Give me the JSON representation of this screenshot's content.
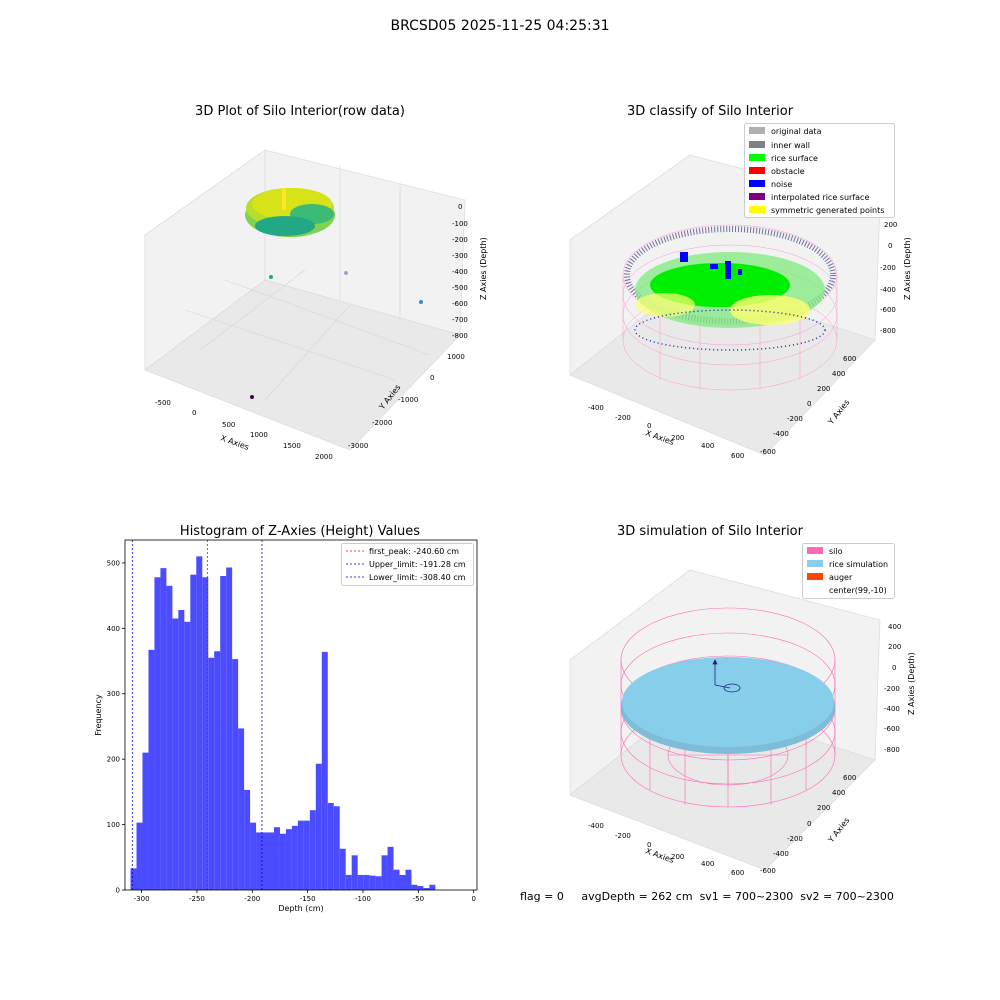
{
  "suptitle": "BRCSD05 2025-11-25 04:25:31",
  "bottom_info": {
    "flag": "flag = 0",
    "avg": "avgDepth = 262 cm",
    "sv1": "sv1 = 700~2300",
    "sv2": "sv2 = 700~2300"
  },
  "panels": {
    "raw": {
      "title": "3D Plot of Silo Interior(row data)",
      "xlabel": "X Axies",
      "ylabel": "Y Axies",
      "zlabel": "Z Axies (Depth)",
      "xticks": [
        "-500",
        "0",
        "500",
        "1000",
        "1500",
        "2000"
      ],
      "yticks": [
        "1000",
        "0",
        "-1000",
        "-2000",
        "-3000"
      ],
      "zticks": [
        "0",
        "-100",
        "-200",
        "-300",
        "-400",
        "-500",
        "-600",
        "-700",
        "-800"
      ]
    },
    "classify": {
      "title": "3D classify of Silo Interior",
      "xlabel": "X Axies",
      "ylabel": "Y Axies",
      "zlabel": "Z Axies (Depth)",
      "xticks": [
        "-400",
        "-200",
        "0",
        "200",
        "400",
        "600"
      ],
      "yticks": [
        "600",
        "400",
        "200",
        "0",
        "-200",
        "-400",
        "-600"
      ],
      "zticks": [
        "200",
        "0",
        "-200",
        "-400",
        "-600",
        "-800"
      ],
      "legend": [
        {
          "label": "original data",
          "color": "#b0b0b0"
        },
        {
          "label": "inner wall",
          "color": "#808080"
        },
        {
          "label": "rice surface",
          "color": "#00ff00"
        },
        {
          "label": "obstacle",
          "color": "#ff0000"
        },
        {
          "label": "noise",
          "color": "#0000ff"
        },
        {
          "label": "interpolated rice surface",
          "color": "#800080"
        },
        {
          "label": "symmetric generated points",
          "color": "#ffff00"
        }
      ]
    },
    "simulation": {
      "title": "3D simulation of Silo Interior",
      "xlabel": "X Axies",
      "ylabel": "Y Axies",
      "zlabel": "Z Axies (Depth)",
      "xticks": [
        "-400",
        "-200",
        "0",
        "200",
        "400",
        "600"
      ],
      "yticks": [
        "600",
        "400",
        "200",
        "0",
        "-200",
        "-400",
        "-600"
      ],
      "zticks": [
        "400",
        "200",
        "0",
        "-200",
        "-400",
        "-600",
        "-800"
      ],
      "legend": [
        {
          "label": "silo",
          "color": "#ff69b4"
        },
        {
          "label": "rice simulation",
          "color": "#87ceeb"
        },
        {
          "label": "auger",
          "color": "#ff4500"
        },
        {
          "label": "center(99,-10)",
          "color": ""
        }
      ]
    }
  },
  "chart_data": {
    "type": "bar",
    "title": "Histogram of Z-Axies (Height) Values",
    "xlabel": "Depth (cm)",
    "ylabel": "Frequency",
    "xlim": [
      -315,
      3
    ],
    "ylim": [
      0,
      535
    ],
    "xticks": [
      -300,
      -250,
      -200,
      -150,
      -100,
      -50,
      0
    ],
    "yticks": [
      0,
      100,
      200,
      300,
      400,
      500
    ],
    "bin_start": -310,
    "bin_width": 5.4,
    "values": [
      33,
      103,
      210,
      367,
      478,
      492,
      465,
      415,
      428,
      410,
      482,
      510,
      478,
      355,
      365,
      480,
      493,
      353,
      247,
      153,
      103,
      88,
      88,
      88,
      96,
      86,
      93,
      98,
      106,
      106,
      122,
      193,
      364,
      133,
      128,
      63,
      23,
      53,
      23,
      23,
      22,
      21,
      53,
      66,
      31,
      23,
      31,
      8,
      6,
      3,
      8
    ],
    "bar_color": "#4b4bff",
    "lines": [
      {
        "label": "first_peak: -240.60 cm",
        "x": -240.6,
        "color": "#ff0000"
      },
      {
        "label": "Upper_limit: -191.28 cm",
        "x": -191.28,
        "color": "#0000cc"
      },
      {
        "label": "Lower_limit: -308.40 cm",
        "x": -308.4,
        "color": "#0000cc"
      }
    ]
  }
}
